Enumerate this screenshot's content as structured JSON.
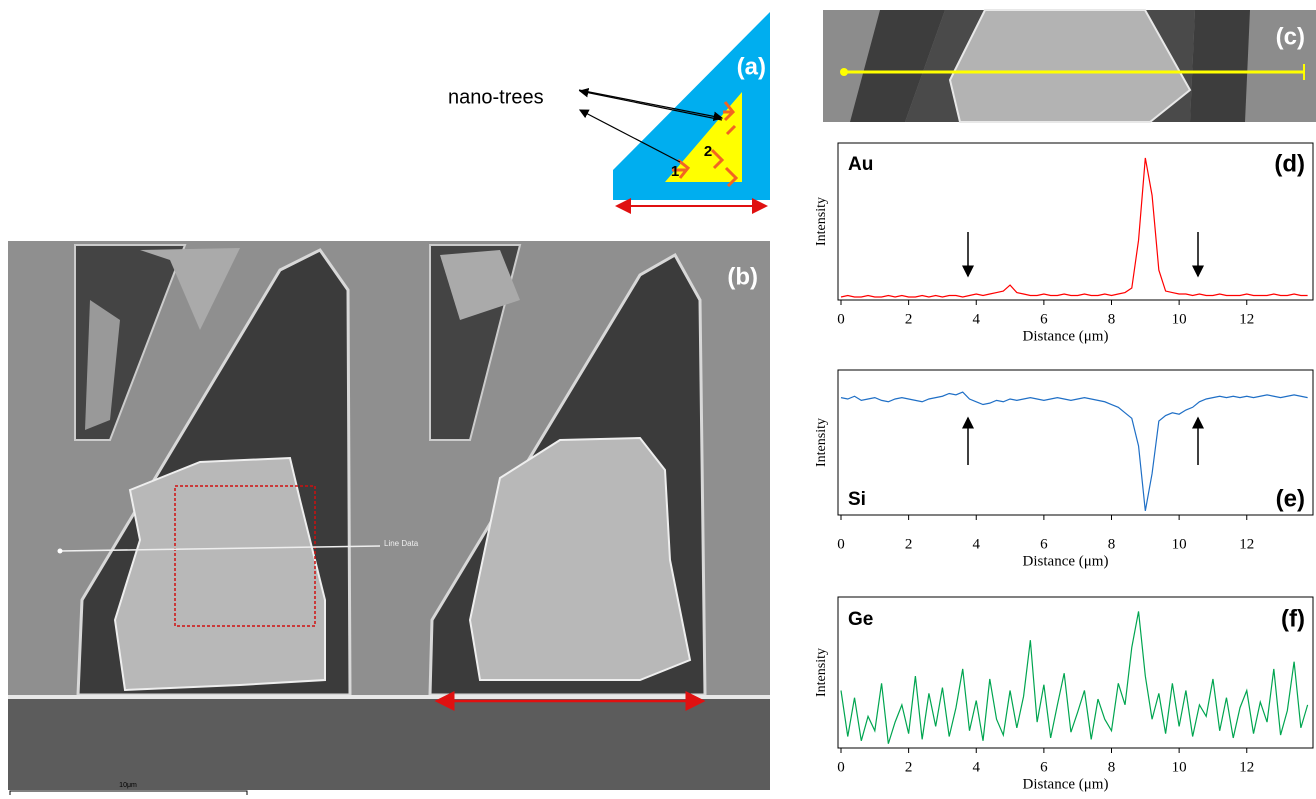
{
  "figure": {
    "panel_a": {
      "label": "(a)",
      "callout": "nano-trees",
      "markers": [
        "1",
        "2"
      ]
    },
    "panel_b": {
      "label": "(b)",
      "line_label": "Line Data",
      "scale_bar": "10μm"
    },
    "panel_c": {
      "label": "(c)"
    }
  },
  "chart_data": [
    {
      "type": "line",
      "panel_label": "(d)",
      "x_label": "Distance (μm)",
      "y_label": "Intensity",
      "xlim": [
        0,
        13.9
      ],
      "xticks": [
        0,
        2,
        4,
        6,
        8,
        10,
        12
      ],
      "ylim": [
        0,
        105
      ],
      "x": [
        0,
        0.2,
        0.4,
        0.6,
        0.8,
        1,
        1.2,
        1.4,
        1.6,
        1.8,
        2,
        2.2,
        2.4,
        2.6,
        2.8,
        3,
        3.2,
        3.4,
        3.6,
        3.8,
        4,
        4.2,
        4.4,
        4.6,
        4.8,
        5,
        5.2,
        5.4,
        5.6,
        5.8,
        6,
        6.2,
        6.4,
        6.6,
        6.8,
        7,
        7.2,
        7.4,
        7.6,
        7.8,
        8,
        8.2,
        8.4,
        8.6,
        8.8,
        9,
        9.2,
        9.4,
        9.6,
        9.8,
        10,
        10.2,
        10.4,
        10.6,
        10.8,
        11,
        11.2,
        11.4,
        11.6,
        11.8,
        12,
        12.2,
        12.4,
        12.6,
        12.8,
        13,
        13.2,
        13.4,
        13.6,
        13.8
      ],
      "series": [
        {
          "name": "Au",
          "color": "#ff0000",
          "values": [
            2,
            3,
            2,
            2,
            3,
            2,
            2,
            3,
            2,
            3,
            2,
            2,
            3,
            2,
            3,
            2,
            3,
            3,
            2,
            3,
            4,
            3,
            4,
            5,
            6,
            10,
            5,
            4,
            3,
            3,
            4,
            3,
            3,
            4,
            3,
            3,
            4,
            3,
            3,
            4,
            3,
            4,
            5,
            8,
            40,
            95,
            70,
            20,
            6,
            5,
            4,
            4,
            3,
            4,
            3,
            3,
            4,
            3,
            3,
            3,
            4,
            3,
            3,
            3,
            4,
            3,
            3,
            4,
            3,
            3
          ]
        }
      ]
    },
    {
      "type": "line",
      "panel_label": "(e)",
      "x_label": "Distance (μm)",
      "y_label": "Intensity",
      "xlim": [
        0,
        13.9
      ],
      "xticks": [
        0,
        2,
        4,
        6,
        8,
        10,
        12
      ],
      "ylim": [
        0,
        105
      ],
      "x": [
        0,
        0.2,
        0.4,
        0.6,
        0.8,
        1,
        1.2,
        1.4,
        1.6,
        1.8,
        2,
        2.2,
        2.4,
        2.6,
        2.8,
        3,
        3.2,
        3.4,
        3.6,
        3.8,
        4,
        4.2,
        4.4,
        4.6,
        4.8,
        5,
        5.2,
        5.4,
        5.6,
        5.8,
        6,
        6.2,
        6.4,
        6.6,
        6.8,
        7,
        7.2,
        7.4,
        7.6,
        7.8,
        8,
        8.2,
        8.4,
        8.6,
        8.8,
        9,
        9.2,
        9.4,
        9.6,
        9.8,
        10,
        10.2,
        10.4,
        10.6,
        10.8,
        11,
        11.2,
        11.4,
        11.6,
        11.8,
        12,
        12.2,
        12.4,
        12.6,
        12.8,
        13,
        13.2,
        13.4,
        13.6,
        13.8
      ],
      "series": [
        {
          "name": "Si",
          "color": "#1f6fc6",
          "values": [
            85,
            84,
            86,
            83,
            84,
            85,
            83,
            82,
            84,
            85,
            84,
            83,
            82,
            84,
            85,
            86,
            88,
            87,
            89,
            84,
            82,
            80,
            81,
            83,
            82,
            84,
            83,
            84,
            85,
            84,
            83,
            84,
            85,
            84,
            83,
            84,
            85,
            84,
            83,
            82,
            80,
            78,
            74,
            70,
            50,
            3,
            30,
            68,
            72,
            74,
            73,
            76,
            78,
            82,
            84,
            85,
            86,
            85,
            86,
            85,
            86,
            85,
            86,
            87,
            86,
            85,
            86,
            87,
            86,
            85
          ]
        }
      ]
    },
    {
      "type": "line",
      "panel_label": "(f)",
      "x_label": "Distance (μm)",
      "y_label": "Intensity",
      "xlim": [
        0,
        13.9
      ],
      "xticks": [
        0,
        2,
        4,
        6,
        8,
        10,
        12
      ],
      "ylim": [
        0,
        105
      ],
      "x": [
        0,
        0.2,
        0.4,
        0.6,
        0.8,
        1,
        1.2,
        1.4,
        1.6,
        1.8,
        2,
        2.2,
        2.4,
        2.6,
        2.8,
        3,
        3.2,
        3.4,
        3.6,
        3.8,
        4,
        4.2,
        4.4,
        4.6,
        4.8,
        5,
        5.2,
        5.4,
        5.6,
        5.8,
        6,
        6.2,
        6.4,
        6.6,
        6.8,
        7,
        7.2,
        7.4,
        7.6,
        7.8,
        8,
        8.2,
        8.4,
        8.6,
        8.8,
        9,
        9.2,
        9.4,
        9.6,
        9.8,
        10,
        10.2,
        10.4,
        10.6,
        10.8,
        11,
        11.2,
        11.4,
        11.6,
        11.8,
        12,
        12.2,
        12.4,
        12.6,
        12.8,
        13,
        13.2,
        13.4,
        13.6,
        13.8
      ],
      "series": [
        {
          "name": "Ge",
          "color": "#00a550",
          "values": [
            40,
            8,
            35,
            5,
            22,
            12,
            45,
            3,
            18,
            30,
            10,
            50,
            6,
            38,
            15,
            42,
            8,
            28,
            55,
            12,
            33,
            5,
            48,
            20,
            9,
            40,
            14,
            36,
            75,
            18,
            44,
            7,
            30,
            52,
            11,
            25,
            40,
            6,
            34,
            20,
            12,
            45,
            30,
            70,
            95,
            50,
            20,
            38,
            10,
            45,
            15,
            40,
            8,
            30,
            22,
            48,
            12,
            35,
            7,
            28,
            40,
            10,
            32,
            18,
            55,
            9,
            26,
            60,
            14,
            30
          ]
        }
      ]
    }
  ]
}
